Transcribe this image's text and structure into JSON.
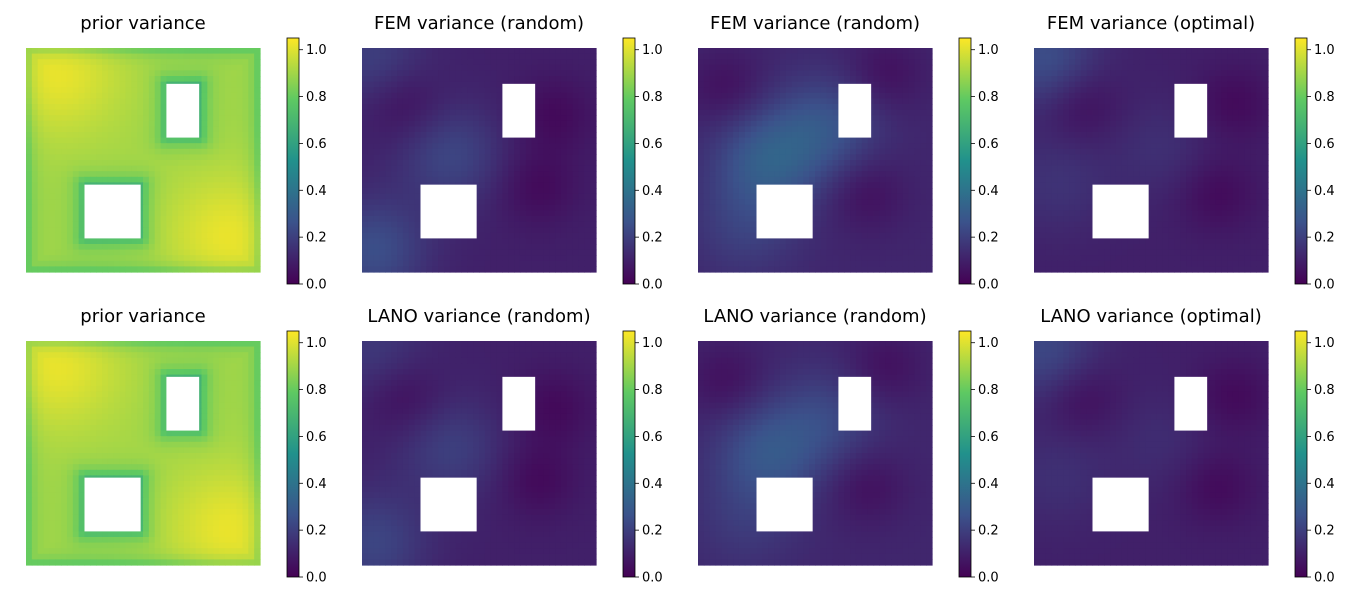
{
  "figure": {
    "colormap": [
      "#440154",
      "#3b528b",
      "#21918c",
      "#5ec962",
      "#fde725"
    ],
    "hole_color": "#ffffff"
  },
  "chart_data": [
    {
      "type": "heatmap",
      "title": "prior variance",
      "row": 1,
      "col": 1,
      "colorbar": {
        "range": [
          0.0,
          1.05
        ],
        "ticks": [
          "0.0",
          "0.2",
          "0.4",
          "0.6",
          "0.8",
          "1.0"
        ]
      },
      "field": {
        "kind": "prior",
        "base": 0.9,
        "peaks": [
          {
            "x": 0.12,
            "y": 0.9,
            "v": 1.02
          },
          {
            "x": 0.88,
            "y": 0.15,
            "v": 1.02
          }
        ],
        "edge_value": 0.75
      },
      "holes": [
        {
          "x0": 0.25,
          "x1": 0.49,
          "y0": 0.15,
          "y1": 0.39
        },
        {
          "x0": 0.6,
          "x1": 0.74,
          "y0": 0.6,
          "y1": 0.84
        }
      ]
    },
    {
      "type": "heatmap",
      "title": "FEM variance (random)",
      "row": 1,
      "col": 2,
      "colorbar": {
        "range": [
          0.0,
          1.05
        ],
        "ticks": [
          "0.0",
          "0.2",
          "0.4",
          "0.6",
          "0.8",
          "1.0"
        ]
      },
      "field": {
        "kind": "posterior",
        "base": 0.1,
        "bumps": [
          {
            "x": 0.05,
            "y": 0.1,
            "v": 0.25
          },
          {
            "x": 0.38,
            "y": 0.52,
            "v": 0.22
          },
          {
            "x": 0.05,
            "y": 0.95,
            "v": 0.2
          }
        ],
        "dips": [
          {
            "x": 0.18,
            "y": 0.75
          },
          {
            "x": 0.75,
            "y": 0.38
          },
          {
            "x": 0.82,
            "y": 0.7
          }
        ]
      },
      "holes": [
        {
          "x0": 0.25,
          "x1": 0.49,
          "y0": 0.15,
          "y1": 0.39
        },
        {
          "x0": 0.6,
          "x1": 0.74,
          "y0": 0.6,
          "y1": 0.84
        }
      ]
    },
    {
      "type": "heatmap",
      "title": "FEM variance (random)",
      "row": 1,
      "col": 3,
      "colorbar": {
        "range": [
          0.0,
          1.05
        ],
        "ticks": [
          "0.0",
          "0.2",
          "0.4",
          "0.6",
          "0.8",
          "1.0"
        ]
      },
      "field": {
        "kind": "posterior",
        "base": 0.12,
        "bumps": [
          {
            "x": 0.3,
            "y": 0.5,
            "v": 0.3
          },
          {
            "x": 0.55,
            "y": 0.65,
            "v": 0.26
          },
          {
            "x": 0.2,
            "y": 0.2,
            "v": 0.2
          }
        ],
        "dips": [
          {
            "x": 0.12,
            "y": 0.82
          },
          {
            "x": 0.72,
            "y": 0.35
          },
          {
            "x": 0.8,
            "y": 0.88
          }
        ]
      },
      "holes": [
        {
          "x0": 0.25,
          "x1": 0.49,
          "y0": 0.15,
          "y1": 0.39
        },
        {
          "x0": 0.6,
          "x1": 0.74,
          "y0": 0.6,
          "y1": 0.84
        }
      ]
    },
    {
      "type": "heatmap",
      "title": "FEM variance (optimal)",
      "row": 1,
      "col": 4,
      "colorbar": {
        "range": [
          0.0,
          1.05
        ],
        "ticks": [
          "0.0",
          "0.2",
          "0.4",
          "0.6",
          "0.8",
          "1.0"
        ]
      },
      "field": {
        "kind": "posterior",
        "base": 0.1,
        "bumps": [
          {
            "x": 0.05,
            "y": 0.95,
            "v": 0.25
          },
          {
            "x": 0.1,
            "y": 0.4,
            "v": 0.16
          },
          {
            "x": 0.55,
            "y": 0.55,
            "v": 0.15
          }
        ],
        "dips": [
          {
            "x": 0.2,
            "y": 0.75
          },
          {
            "x": 0.78,
            "y": 0.35
          },
          {
            "x": 0.85,
            "y": 0.75
          }
        ]
      },
      "holes": [
        {
          "x0": 0.25,
          "x1": 0.49,
          "y0": 0.15,
          "y1": 0.39
        },
        {
          "x0": 0.6,
          "x1": 0.74,
          "y0": 0.6,
          "y1": 0.84
        }
      ]
    },
    {
      "type": "heatmap",
      "title": "prior variance",
      "row": 2,
      "col": 1,
      "colorbar": {
        "range": [
          0.0,
          1.05
        ],
        "ticks": [
          "0.0",
          "0.2",
          "0.4",
          "0.6",
          "0.8",
          "1.0"
        ]
      },
      "field": {
        "kind": "prior",
        "base": 0.9,
        "peaks": [
          {
            "x": 0.12,
            "y": 0.9,
            "v": 1.02
          },
          {
            "x": 0.88,
            "y": 0.15,
            "v": 1.02
          }
        ],
        "edge_value": 0.75
      },
      "holes": [
        {
          "x0": 0.25,
          "x1": 0.49,
          "y0": 0.15,
          "y1": 0.39
        },
        {
          "x0": 0.6,
          "x1": 0.74,
          "y0": 0.6,
          "y1": 0.84
        }
      ]
    },
    {
      "type": "heatmap",
      "title": "LANO variance (random)",
      "row": 2,
      "col": 2,
      "colorbar": {
        "range": [
          0.0,
          1.05
        ],
        "ticks": [
          "0.0",
          "0.2",
          "0.4",
          "0.6",
          "0.8",
          "1.0"
        ]
      },
      "field": {
        "kind": "posterior",
        "base": 0.1,
        "bumps": [
          {
            "x": 0.05,
            "y": 0.1,
            "v": 0.22
          },
          {
            "x": 0.38,
            "y": 0.52,
            "v": 0.2
          },
          {
            "x": 0.05,
            "y": 0.95,
            "v": 0.18
          }
        ],
        "dips": [
          {
            "x": 0.18,
            "y": 0.75
          },
          {
            "x": 0.75,
            "y": 0.38
          },
          {
            "x": 0.82,
            "y": 0.7
          }
        ]
      },
      "holes": [
        {
          "x0": 0.25,
          "x1": 0.49,
          "y0": 0.15,
          "y1": 0.39
        },
        {
          "x0": 0.6,
          "x1": 0.74,
          "y0": 0.6,
          "y1": 0.84
        }
      ]
    },
    {
      "type": "heatmap",
      "title": "LANO variance (random)",
      "row": 2,
      "col": 3,
      "colorbar": {
        "range": [
          0.0,
          1.05
        ],
        "ticks": [
          "0.0",
          "0.2",
          "0.4",
          "0.6",
          "0.8",
          "1.0"
        ]
      },
      "field": {
        "kind": "posterior",
        "base": 0.12,
        "bumps": [
          {
            "x": 0.3,
            "y": 0.5,
            "v": 0.27
          },
          {
            "x": 0.55,
            "y": 0.65,
            "v": 0.22
          },
          {
            "x": 0.2,
            "y": 0.2,
            "v": 0.18
          }
        ],
        "dips": [
          {
            "x": 0.12,
            "y": 0.82
          },
          {
            "x": 0.72,
            "y": 0.35
          },
          {
            "x": 0.8,
            "y": 0.88
          }
        ]
      },
      "holes": [
        {
          "x0": 0.25,
          "x1": 0.49,
          "y0": 0.15,
          "y1": 0.39
        },
        {
          "x0": 0.6,
          "x1": 0.74,
          "y0": 0.6,
          "y1": 0.84
        }
      ]
    },
    {
      "type": "heatmap",
      "title": "LANO variance (optimal)",
      "row": 2,
      "col": 4,
      "colorbar": {
        "range": [
          0.0,
          1.05
        ],
        "ticks": [
          "0.0",
          "0.2",
          "0.4",
          "0.6",
          "0.8",
          "1.0"
        ]
      },
      "field": {
        "kind": "posterior",
        "base": 0.1,
        "bumps": [
          {
            "x": 0.05,
            "y": 0.95,
            "v": 0.23
          },
          {
            "x": 0.1,
            "y": 0.4,
            "v": 0.15
          },
          {
            "x": 0.55,
            "y": 0.55,
            "v": 0.14
          }
        ],
        "dips": [
          {
            "x": 0.2,
            "y": 0.75
          },
          {
            "x": 0.78,
            "y": 0.35
          },
          {
            "x": 0.85,
            "y": 0.75
          }
        ]
      },
      "holes": [
        {
          "x0": 0.25,
          "x1": 0.49,
          "y0": 0.15,
          "y1": 0.39
        },
        {
          "x0": 0.6,
          "x1": 0.74,
          "y0": 0.6,
          "y1": 0.84
        }
      ]
    }
  ]
}
